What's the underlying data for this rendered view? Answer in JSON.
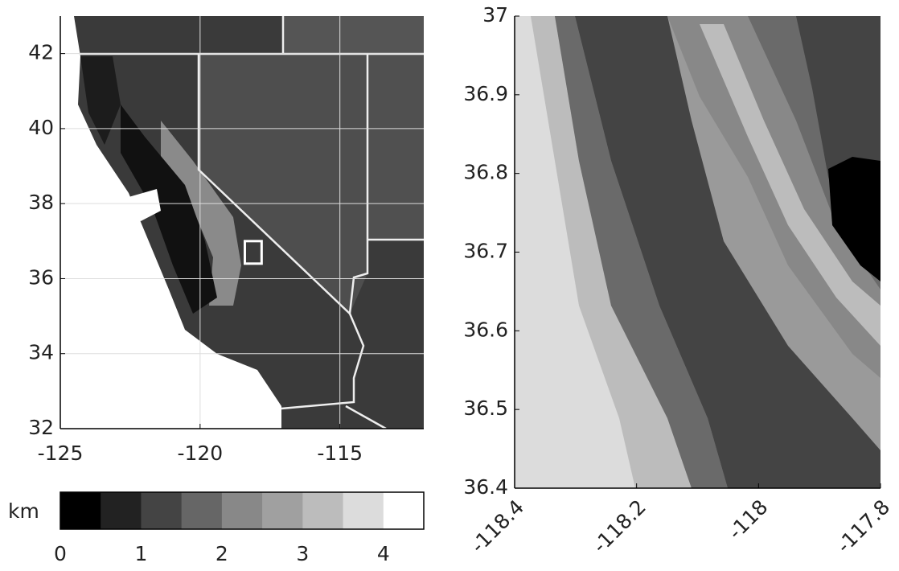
{
  "left_map": {
    "xlim": [
      -125,
      -112
    ],
    "ylim": [
      32,
      43
    ],
    "xticks": [
      -125,
      -120,
      -115
    ],
    "yticks": [
      32,
      34,
      36,
      38,
      40,
      42
    ],
    "grid": true
  },
  "right_map": {
    "xlim": [
      -118.4,
      -117.8
    ],
    "ylim": [
      36.4,
      37
    ],
    "xticks": [
      -118.4,
      -118.2,
      -118,
      -117.8
    ],
    "yticks": [
      36.4,
      36.5,
      36.6,
      36.7,
      36.8,
      36.9,
      37
    ],
    "grid": false
  },
  "colorbar": {
    "label": "km",
    "lim": [
      0,
      4.5
    ],
    "ticks": [
      0,
      1,
      2,
      3,
      4
    ],
    "colors": [
      "#000000",
      "#222222",
      "#444444",
      "#666666",
      "#888888",
      "#a0a0a0",
      "#bcbcbc",
      "#dcdcdc",
      "#ffffff"
    ]
  }
}
